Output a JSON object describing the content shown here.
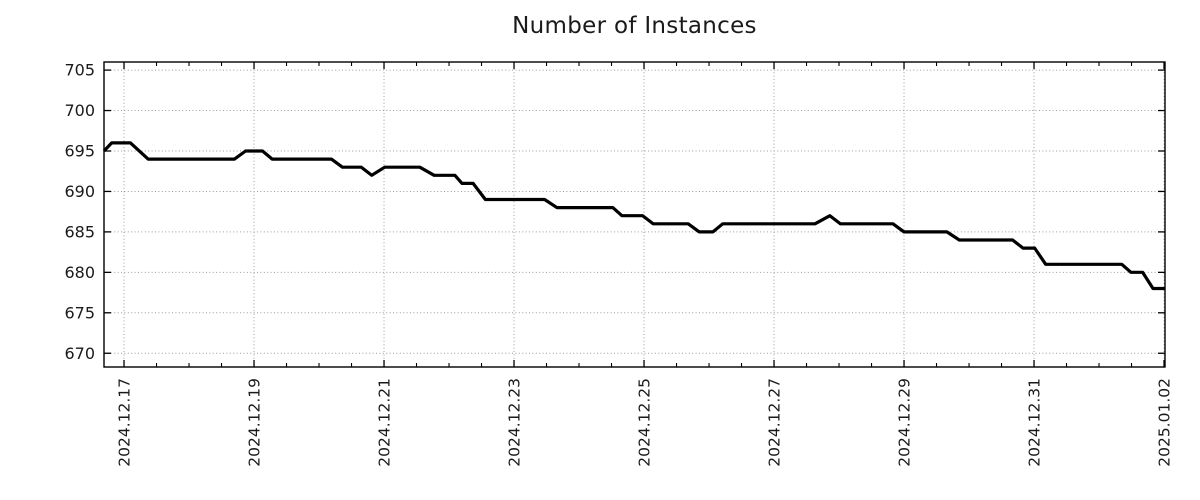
{
  "chart_data": {
    "type": "line",
    "title": "Number of Instances",
    "x_axis": {
      "unit": "days since 2024-12-17 00:00",
      "lim": [
        -0.308,
        16.015
      ],
      "major_ticks": [
        0,
        2,
        4,
        6,
        8,
        10,
        12,
        14,
        16
      ],
      "tick_labels": [
        "2024.12.17",
        "2024.12.19",
        "2024.12.21",
        "2024.12.23",
        "2024.12.25",
        "2024.12.27",
        "2024.12.29",
        "2024.12.31",
        "2025.01.02"
      ],
      "minor_tick_step_days": 0.5
    },
    "y_axis": {
      "lim": [
        668.3,
        706.0
      ],
      "ticks": [
        670,
        675,
        680,
        685,
        690,
        695,
        700,
        705
      ]
    },
    "grid": {
      "show": true,
      "color": "#9c9c9c",
      "style": "dotted"
    },
    "frame_color": "#000000",
    "series": [
      {
        "name": "instances",
        "color": "#000000",
        "points": [
          [
            -0.308,
            695
          ],
          [
            -0.19,
            696
          ],
          [
            0.1,
            696
          ],
          [
            0.37,
            694
          ],
          [
            1.7,
            694
          ],
          [
            1.87,
            695
          ],
          [
            2.13,
            695
          ],
          [
            2.28,
            694
          ],
          [
            3.19,
            694
          ],
          [
            3.36,
            693
          ],
          [
            3.65,
            693
          ],
          [
            3.81,
            692
          ],
          [
            4.01,
            693
          ],
          [
            4.55,
            693
          ],
          [
            4.77,
            692
          ],
          [
            5.09,
            692
          ],
          [
            5.2,
            691
          ],
          [
            5.37,
            691
          ],
          [
            5.56,
            689
          ],
          [
            6.47,
            689
          ],
          [
            6.66,
            688
          ],
          [
            7.52,
            688
          ],
          [
            7.66,
            687
          ],
          [
            7.98,
            687
          ],
          [
            8.14,
            686
          ],
          [
            8.68,
            686
          ],
          [
            8.85,
            685
          ],
          [
            9.06,
            685
          ],
          [
            9.21,
            686
          ],
          [
            10.63,
            686
          ],
          [
            10.86,
            687
          ],
          [
            11.02,
            686
          ],
          [
            11.83,
            686
          ],
          [
            12.0,
            685
          ],
          [
            12.66,
            685
          ],
          [
            12.85,
            684
          ],
          [
            13.67,
            684
          ],
          [
            13.83,
            683
          ],
          [
            14.01,
            683
          ],
          [
            14.18,
            681
          ],
          [
            15.35,
            681
          ],
          [
            15.49,
            680
          ],
          [
            15.67,
            680
          ],
          [
            15.83,
            678
          ],
          [
            16.015,
            678
          ]
        ]
      }
    ]
  }
}
